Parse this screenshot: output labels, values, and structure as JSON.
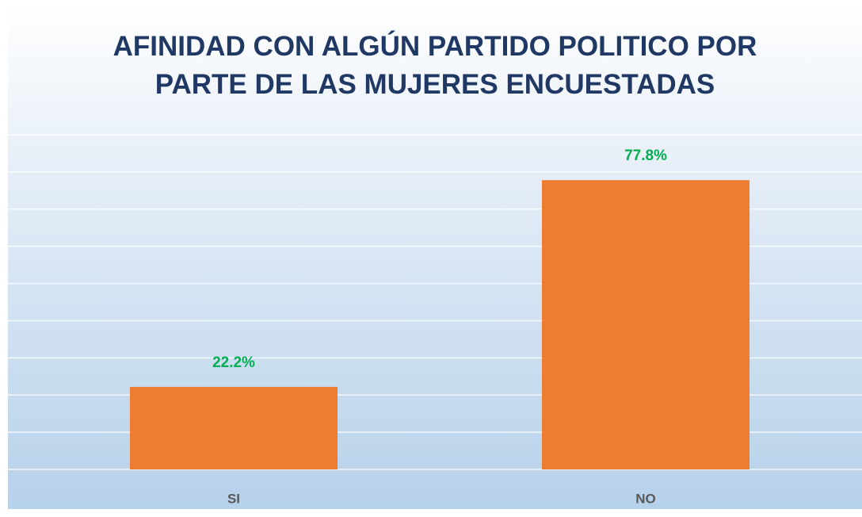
{
  "chart_data": {
    "type": "bar",
    "title": "AFINIDAD CON ALGÚN PARTIDO POLITICO POR\nPARTE DE LAS MUJERES ENCUESTADAS",
    "categories": [
      "SI",
      "NO"
    ],
    "values": [
      22.2,
      77.8
    ],
    "value_labels": [
      "22.2%",
      "77.8%"
    ],
    "color": "#ed7d31",
    "label_color": "#00b050",
    "ylim": [
      0,
      90
    ],
    "yticks": [
      0,
      10,
      20,
      30,
      40,
      50,
      60,
      70,
      80,
      90
    ],
    "grid": true
  }
}
